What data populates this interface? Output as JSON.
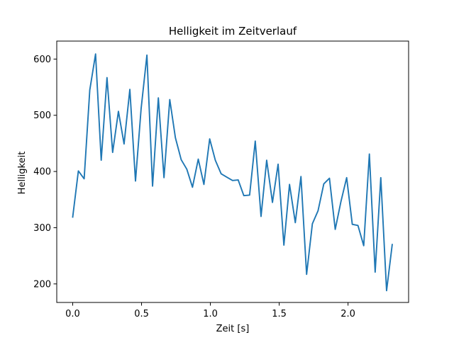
{
  "chart_data": {
    "type": "line",
    "title": "Helligkeit im Zeitverlauf",
    "xlabel": "Zeit [s]",
    "ylabel": "Helligkeit",
    "xlim": [
      -0.116,
      2.44
    ],
    "ylim": [
      167,
      632
    ],
    "xticks": [
      0.0,
      0.5,
      1.0,
      1.5,
      2.0
    ],
    "xtick_labels": [
      "0.0",
      "0.5",
      "1.0",
      "1.5",
      "2.0"
    ],
    "yticks": [
      200,
      300,
      400,
      500,
      600
    ],
    "ytick_labels": [
      "200",
      "300",
      "400",
      "500",
      "600"
    ],
    "grid": false,
    "legend": "none",
    "series": [
      {
        "color": "#1f77b4",
        "x": [
          0.0,
          0.041,
          0.083,
          0.124,
          0.166,
          0.207,
          0.249,
          0.29,
          0.332,
          0.373,
          0.415,
          0.456,
          0.497,
          0.539,
          0.58,
          0.622,
          0.663,
          0.705,
          0.746,
          0.788,
          0.829,
          0.87,
          0.912,
          0.953,
          0.995,
          1.036,
          1.078,
          1.119,
          1.161,
          1.202,
          1.243,
          1.285,
          1.326,
          1.368,
          1.409,
          1.451,
          1.492,
          1.534,
          1.575,
          1.617,
          1.658,
          1.699,
          1.741,
          1.782,
          1.824,
          1.865,
          1.907,
          1.948,
          1.99,
          2.031,
          2.072,
          2.114,
          2.155,
          2.197,
          2.238,
          2.28,
          2.321
        ],
        "values": [
          319,
          401,
          387,
          545,
          609,
          420,
          567,
          434,
          507,
          449,
          546,
          383,
          512,
          607,
          374,
          531,
          389,
          528,
          460,
          421,
          404,
          372,
          422,
          377,
          458,
          420,
          396,
          390,
          384,
          385,
          357,
          358,
          454,
          320,
          420,
          345,
          413,
          269,
          377,
          309,
          391,
          217,
          307,
          330,
          378,
          388,
          297,
          346,
          389,
          306,
          304,
          268,
          431,
          221,
          389,
          188,
          270
        ]
      }
    ]
  }
}
